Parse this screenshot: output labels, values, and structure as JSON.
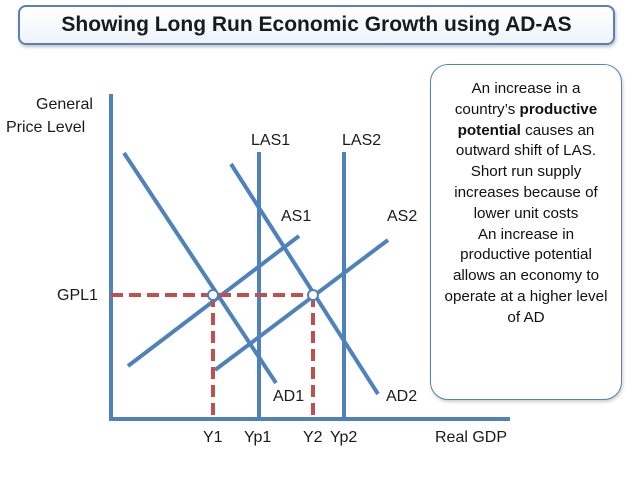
{
  "title": "Showing Long Run Economic Growth using AD-AS",
  "axes": {
    "y_label_line1": "General",
    "y_label_line2": "Price Level",
    "x_label": "Real GDP"
  },
  "curves": {
    "las1": "LAS1",
    "las2": "LAS2",
    "as1": "AS1",
    "as2": "AS2",
    "ad1": "AD1",
    "ad2": "AD2"
  },
  "price_level": "GPL1",
  "x_ticks": {
    "y1": "Y1",
    "yp1": "Yp1",
    "y2": "Y2",
    "yp2": "Yp2"
  },
  "info": {
    "p1": "An increase in a country’s",
    "p1_bold": "productive potential",
    "p1_rest": "causes an outward shift of LAS. Short run supply increases because of lower unit costs",
    "p2": "An increase in productive potential allows an economy to operate at a higher level of AD"
  },
  "colors": {
    "curve": "#4f81bd",
    "dash": "#c0504d",
    "border": "#5b7fb8"
  }
}
